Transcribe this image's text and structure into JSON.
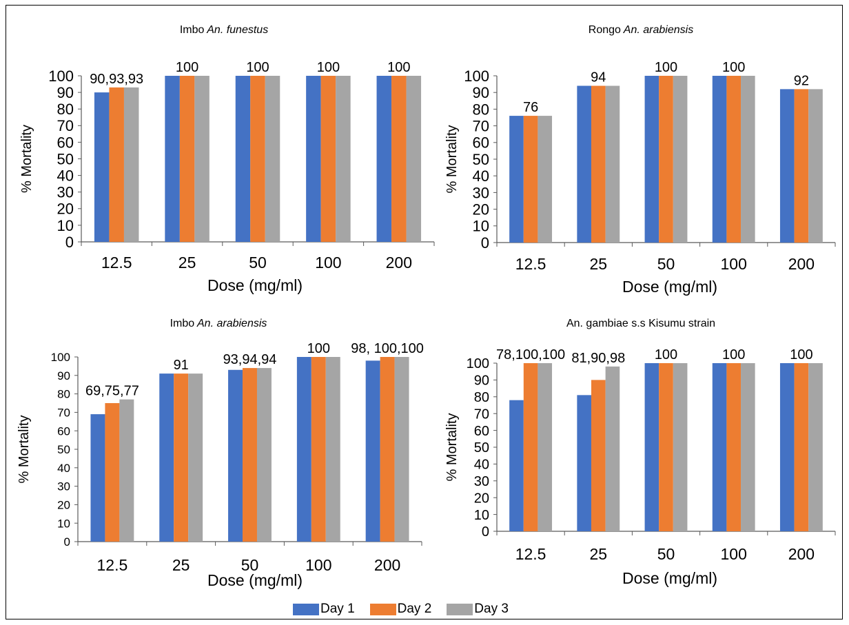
{
  "chart_data": [
    {
      "type": "bar",
      "title": "Imbo",
      "title_italic": "An. funestus",
      "xlabel": "Dose (mg/ml)",
      "ylabel": "% Mortality",
      "ylim": [
        0,
        100
      ],
      "yticks": [
        0,
        10,
        20,
        30,
        40,
        50,
        60,
        70,
        80,
        90,
        100
      ],
      "categories": [
        "12.5",
        "25",
        "50",
        "100",
        "200"
      ],
      "series": [
        {
          "name": "Day 1",
          "values": [
            90,
            100,
            100,
            100,
            100
          ]
        },
        {
          "name": "Day 2",
          "values": [
            93,
            100,
            100,
            100,
            100
          ]
        },
        {
          "name": "Day 3",
          "values": [
            93,
            100,
            100,
            100,
            100
          ]
        }
      ],
      "data_labels": [
        "90,93,93",
        "100",
        "100",
        "100",
        "100"
      ]
    },
    {
      "type": "bar",
      "title": "Rongo",
      "title_italic": "An. arabiensis",
      "xlabel": "Dose (mg/ml)",
      "ylabel": "% Mortality",
      "ylim": [
        0,
        100
      ],
      "yticks": [
        0,
        10,
        20,
        30,
        40,
        50,
        60,
        70,
        80,
        90,
        100
      ],
      "categories": [
        "12.5",
        "25",
        "50",
        "100",
        "200"
      ],
      "series": [
        {
          "name": "Day 1",
          "values": [
            76,
            94,
            100,
            100,
            92
          ]
        },
        {
          "name": "Day 2",
          "values": [
            76,
            94,
            100,
            100,
            92
          ]
        },
        {
          "name": "Day 3",
          "values": [
            76,
            94,
            100,
            100,
            92
          ]
        }
      ],
      "data_labels": [
        "76",
        "94",
        "100",
        "100",
        "92"
      ]
    },
    {
      "type": "bar",
      "title": "Imbo",
      "title_italic": "An. arabiensis",
      "xlabel": "Dose (mg/ml)",
      "ylabel": "% Mortality",
      "ylim": [
        0,
        100
      ],
      "yticks": [
        0,
        10,
        20,
        30,
        40,
        50,
        60,
        70,
        80,
        90,
        100
      ],
      "categories": [
        "12.5",
        "25",
        "50",
        "100",
        "200"
      ],
      "series": [
        {
          "name": "Day 1",
          "values": [
            69,
            91,
            93,
            100,
            98
          ]
        },
        {
          "name": "Day 2",
          "values": [
            75,
            91,
            94,
            100,
            100
          ]
        },
        {
          "name": "Day 3",
          "values": [
            77,
            91,
            94,
            100,
            100
          ]
        }
      ],
      "data_labels": [
        "69,75,77",
        "91",
        "93,94,94",
        "100",
        "98, 100,100"
      ]
    },
    {
      "type": "bar",
      "title": "An. gambiae s.s Kisumu strain",
      "title_italic": "",
      "xlabel": "Dose (mg/ml)",
      "ylabel": "% Mortality",
      "ylim": [
        0,
        100
      ],
      "yticks": [
        0,
        10,
        20,
        30,
        40,
        50,
        60,
        70,
        80,
        90,
        100
      ],
      "categories": [
        "12.5",
        "25",
        "50",
        "100",
        "200"
      ],
      "series": [
        {
          "name": "Day 1",
          "values": [
            78,
            81,
            100,
            100,
            100
          ]
        },
        {
          "name": "Day 2",
          "values": [
            100,
            90,
            100,
            100,
            100
          ]
        },
        {
          "name": "Day 3",
          "values": [
            100,
            98,
            100,
            100,
            100
          ]
        }
      ],
      "data_labels": [
        "78,100,100",
        "81,90,98",
        "100",
        "100",
        "100"
      ]
    }
  ],
  "colors": {
    "Day 1": "#4472c4",
    "Day 2": "#ed7d31",
    "Day 3": "#a5a5a5"
  },
  "legend": {
    "position": "bottom",
    "items": [
      "Day 1",
      "Day 2",
      "Day 3"
    ]
  }
}
